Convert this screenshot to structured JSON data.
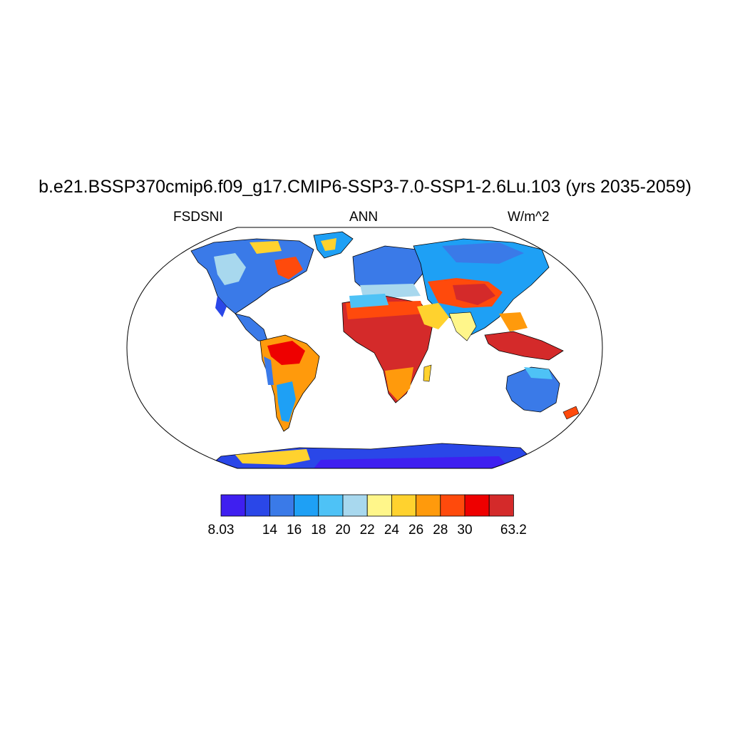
{
  "title": "b.e21.BSSP370cmip6.f09_g17.CMIP6-SSP3-7.0-SSP1-2.6Lu.103 (yrs 2035-2059)",
  "subtitle": {
    "left": "FSDSNI",
    "center": "ANN",
    "right": "W/m^2"
  },
  "colorbar": {
    "colors": [
      "#3f1ff0",
      "#2a47e8",
      "#3a7ae8",
      "#1ea0f5",
      "#4ec2f6",
      "#a8d8ee",
      "#fff68a",
      "#ffd22e",
      "#ff9a0c",
      "#ff4a0c",
      "#ee0000",
      "#d42a2a"
    ],
    "labels": [
      "8.03",
      "14",
      "16",
      "18",
      "20",
      "22",
      "24",
      "26",
      "28",
      "30",
      "63.2"
    ],
    "label_bins": [
      0,
      2,
      3,
      4,
      5,
      6,
      7,
      8,
      9,
      10,
      12
    ]
  },
  "map": {
    "projection": "Robinson",
    "ocean_color": "#ffffff",
    "coastline_color": "#000000"
  }
}
